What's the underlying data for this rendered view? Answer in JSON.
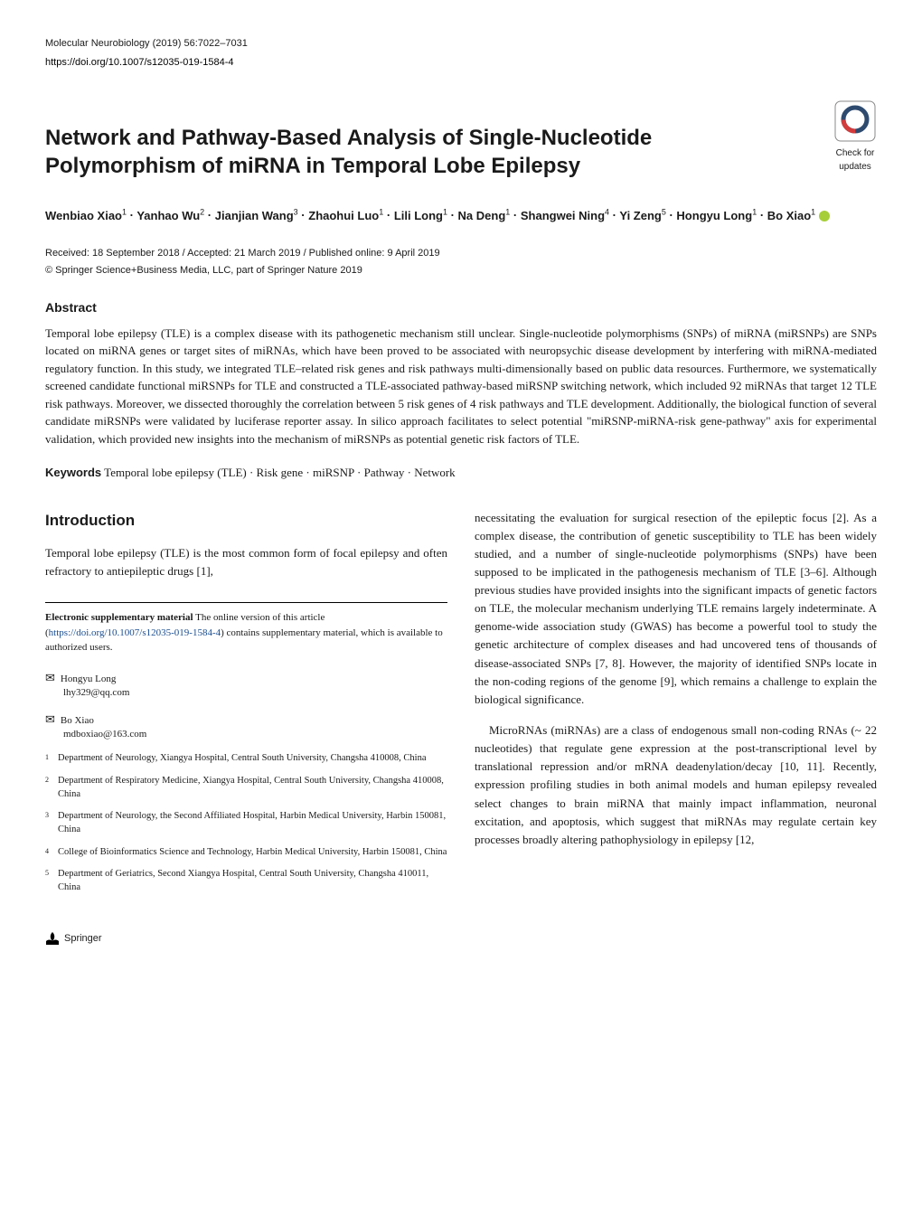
{
  "header": {
    "journal_citation": "Molecular Neurobiology (2019) 56:7022–7031",
    "doi": "https://doi.org/10.1007/s12035-019-1584-4",
    "check_updates_label1": "Check for",
    "check_updates_label2": "updates"
  },
  "title": "Network and Pathway-Based Analysis of Single-Nucleotide Polymorphism of miRNA in Temporal Lobe Epilepsy",
  "authors": [
    {
      "name": "Wenbiao Xiao",
      "affil": "1"
    },
    {
      "name": "Yanhao Wu",
      "affil": "2"
    },
    {
      "name": "Jianjian Wang",
      "affil": "3"
    },
    {
      "name": "Zhaohui Luo",
      "affil": "1"
    },
    {
      "name": "Lili Long",
      "affil": "1"
    },
    {
      "name": "Na Deng",
      "affil": "1"
    },
    {
      "name": "Shangwei Ning",
      "affil": "4"
    },
    {
      "name": "Yi Zeng",
      "affil": "5"
    },
    {
      "name": "Hongyu Long",
      "affil": "1"
    },
    {
      "name": "Bo Xiao",
      "affil": "1",
      "orcid": true
    }
  ],
  "dates": "Received: 18 September 2018 / Accepted: 21 March 2019 / Published online: 9 April 2019",
  "copyright": "© Springer Science+Business Media, LLC, part of Springer Nature 2019",
  "abstract": {
    "heading": "Abstract",
    "text": "Temporal lobe epilepsy (TLE) is a complex disease with its pathogenetic mechanism still unclear. Single-nucleotide polymorphisms (SNPs) of miRNA (miRSNPs) are SNPs located on miRNA genes or target sites of miRNAs, which have been proved to be associated with neuropsychic disease development by interfering with miRNA-mediated regulatory function. In this study, we integrated TLE–related risk genes and risk pathways multi-dimensionally based on public data resources. Furthermore, we systematically screened candidate functional miRSNPs for TLE and constructed a TLE-associated pathway-based miRSNP switching network, which included 92 miRNAs that target 12 TLE risk pathways. Moreover, we dissected thoroughly the correlation between 5 risk genes of 4 risk pathways and TLE development. Additionally, the biological function of several candidate miRSNPs were validated by luciferase reporter assay. In silico approach facilitates to select potential \"miRSNP-miRNA-risk gene-pathway\" axis for experimental validation, which provided new insights into the mechanism of miRSNPs as potential genetic risk factors of TLE."
  },
  "keywords": {
    "label": "Keywords",
    "text": "Temporal lobe epilepsy (TLE) · Risk gene · miRSNP · Pathway · Network"
  },
  "introduction": {
    "heading": "Introduction",
    "left_p1": "Temporal lobe epilepsy (TLE) is the most common form of focal epilepsy and often refractory to antiepileptic drugs [1],",
    "right_p1": "necessitating the evaluation for surgical resection of the epileptic focus [2]. As a complex disease, the contribution of genetic susceptibility to TLE has been widely studied, and a number of single-nucleotide polymorphisms (SNPs) have been supposed to be implicated in the pathogenesis mechanism of TLE [3–6]. Although previous studies have provided insights into the significant impacts of genetic factors on TLE, the molecular mechanism underlying TLE remains largely indeterminate. A genome-wide association study (GWAS) has become a powerful tool to study the genetic architecture of complex diseases and had uncovered tens of thousands of disease-associated SNPs [7, 8]. However, the majority of identified SNPs locate in the non-coding regions of the genome [9], which remains a challenge to explain the biological significance.",
    "right_p2": "MicroRNAs (miRNAs) are a class of endogenous small non-coding RNAs (~ 22 nucleotides) that regulate gene expression at the post-transcriptional level by translational repression and/or mRNA deadenylation/decay [10, 11]. Recently, expression profiling studies in both animal models and human epilepsy revealed select changes to brain miRNA that mainly impact inflammation, neuronal excitation, and apoptosis, which suggest that miRNAs may regulate certain key processes broadly altering pathophysiology in epilepsy [12,"
  },
  "esm": {
    "label": "Electronic supplementary material",
    "text": "The online version of this article (",
    "link": "https://doi.org/10.1007/s12035-019-1584-4",
    "text2": ") contains supplementary material, which is available to authorized users."
  },
  "corresponding": [
    {
      "name": "Hongyu Long",
      "email": "lhy329@qq.com"
    },
    {
      "name": "Bo Xiao",
      "email": "mdboxiao@163.com"
    }
  ],
  "affiliations": [
    {
      "num": "1",
      "text": "Department of Neurology, Xiangya Hospital, Central South University, Changsha 410008, China"
    },
    {
      "num": "2",
      "text": "Department of Respiratory Medicine, Xiangya Hospital, Central South University, Changsha 410008, China"
    },
    {
      "num": "3",
      "text": "Department of Neurology, the Second Affiliated Hospital, Harbin Medical University, Harbin 150081, China"
    },
    {
      "num": "4",
      "text": "College of Bioinformatics Science and Technology, Harbin Medical University, Harbin 150081, China"
    },
    {
      "num": "5",
      "text": "Department of Geriatrics, Second Xiangya Hospital, Central South University, Changsha 410011, China"
    }
  ],
  "footer": {
    "publisher": "Springer"
  }
}
